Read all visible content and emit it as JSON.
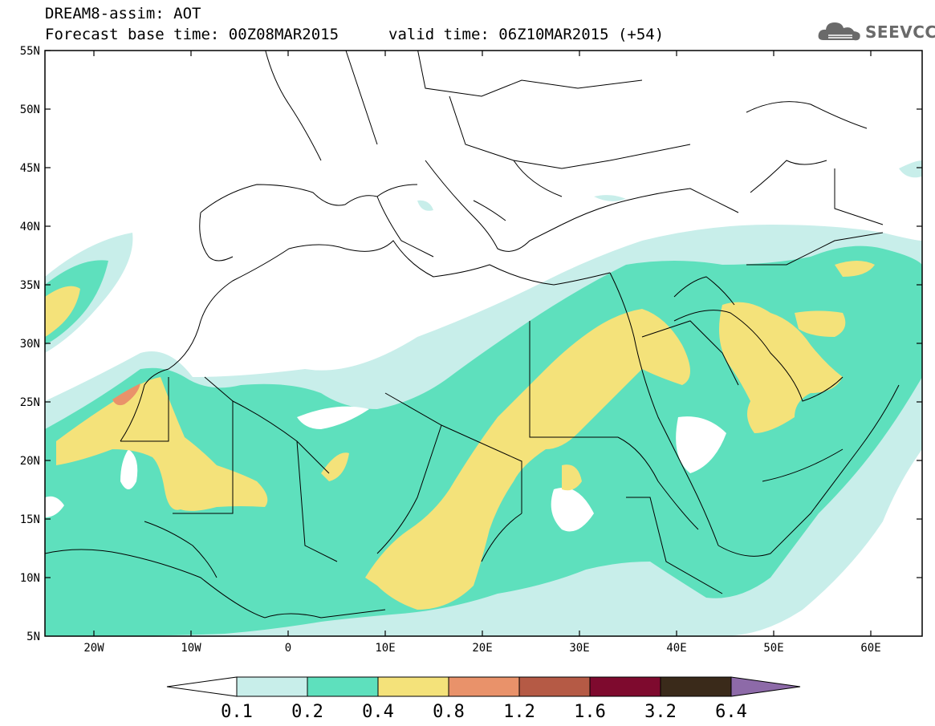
{
  "header": {
    "title_line1": "DREAM8-assim: AOT",
    "forecast_base": "Forecast base time: 00Z08MAR2015",
    "valid_time": "valid time: 06Z10MAR2015 (+54)"
  },
  "logo": {
    "text": "SEEVCCC",
    "icon": "cloud-logo-icon"
  },
  "map": {
    "lat_labels": [
      "55N",
      "50N",
      "45N",
      "40N",
      "35N",
      "30N",
      "25N",
      "20N",
      "15N",
      "10N",
      "5N"
    ],
    "lon_labels": [
      "20W",
      "10W",
      "0",
      "10E",
      "20E",
      "30E",
      "40E",
      "50E",
      "60E"
    ],
    "lon_range": [
      -25,
      65
    ],
    "lat_range": [
      5,
      55
    ]
  },
  "legend": {
    "labels": [
      "0.1",
      "0.2",
      "0.4",
      "0.8",
      "1.2",
      "1.6",
      "3.2",
      "6.4"
    ],
    "colors": [
      "#ffffff",
      "#c8eeea",
      "#5ee0bd",
      "#f4e27a",
      "#e9926a",
      "#b55a45",
      "#7e0a2e",
      "#3a2a1a",
      "#8d6aa8"
    ]
  }
}
